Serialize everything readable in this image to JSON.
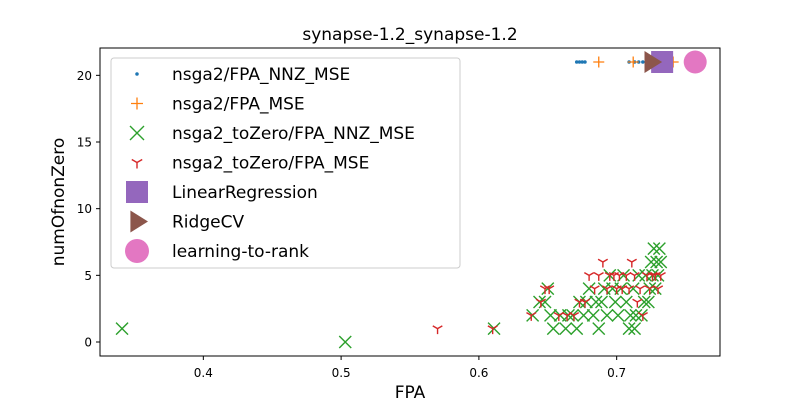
{
  "chart_data": {
    "type": "scatter",
    "title": "synapse-1.2_synapse-1.2",
    "xlabel": "FPA",
    "ylabel": "numOfnonZero",
    "xlim": [
      0.325,
      0.775
    ],
    "ylim": [
      -1.05,
      22.05
    ],
    "xticks": [
      0.4,
      0.5,
      0.6,
      0.7
    ],
    "xtick_labels": [
      "0.4",
      "0.5",
      "0.6",
      "0.7"
    ],
    "yticks": [
      0,
      5,
      10,
      15,
      20
    ],
    "ytick_labels": [
      "0",
      "5",
      "10",
      "15",
      "20"
    ],
    "grid": false,
    "legend_position": "upper-left",
    "series": [
      {
        "name": "nsga2/FPA_NNZ_MSE",
        "marker": "dot",
        "color": "#1f77b4",
        "points": [
          [
            0.671,
            21
          ],
          [
            0.673,
            21
          ],
          [
            0.675,
            21
          ],
          [
            0.677,
            21
          ],
          [
            0.709,
            21
          ],
          [
            0.713,
            21
          ],
          [
            0.716,
            21
          ],
          [
            0.719,
            21
          ],
          [
            0.722,
            21
          ]
        ]
      },
      {
        "name": "nsga2/FPA_MSE",
        "marker": "plus",
        "color": "#ff7f0e",
        "points": [
          [
            0.687,
            21
          ],
          [
            0.712,
            21
          ],
          [
            0.729,
            21
          ],
          [
            0.736,
            21
          ],
          [
            0.741,
            21
          ]
        ]
      },
      {
        "name": "nsga2_toZero/FPA_NNZ_MSE",
        "marker": "x",
        "color": "#2ca02c",
        "points": [
          [
            0.341,
            1
          ],
          [
            0.503,
            0
          ],
          [
            0.611,
            1
          ],
          [
            0.639,
            2
          ],
          [
            0.644,
            3
          ],
          [
            0.648,
            3
          ],
          [
            0.65,
            4
          ],
          [
            0.652,
            2
          ],
          [
            0.654,
            1
          ],
          [
            0.659,
            2
          ],
          [
            0.663,
            1
          ],
          [
            0.665,
            2
          ],
          [
            0.668,
            2
          ],
          [
            0.671,
            1
          ],
          [
            0.673,
            3
          ],
          [
            0.676,
            2
          ],
          [
            0.678,
            3
          ],
          [
            0.68,
            4
          ],
          [
            0.683,
            2
          ],
          [
            0.685,
            3
          ],
          [
            0.687,
            1
          ],
          [
            0.689,
            3
          ],
          [
            0.691,
            4
          ],
          [
            0.693,
            2
          ],
          [
            0.695,
            5
          ],
          [
            0.697,
            4
          ],
          [
            0.699,
            3
          ],
          [
            0.701,
            2
          ],
          [
            0.703,
            4
          ],
          [
            0.705,
            5
          ],
          [
            0.707,
            3
          ],
          [
            0.709,
            1
          ],
          [
            0.71,
            2
          ],
          [
            0.712,
            4
          ],
          [
            0.713,
            1
          ],
          [
            0.714,
            2
          ],
          [
            0.716,
            5
          ],
          [
            0.718,
            2
          ],
          [
            0.72,
            3
          ],
          [
            0.721,
            5
          ],
          [
            0.723,
            3
          ],
          [
            0.724,
            4
          ],
          [
            0.725,
            6
          ],
          [
            0.726,
            5
          ],
          [
            0.727,
            7
          ],
          [
            0.728,
            4
          ],
          [
            0.729,
            6
          ],
          [
            0.73,
            5
          ],
          [
            0.731,
            7
          ],
          [
            0.732,
            6
          ]
        ]
      },
      {
        "name": "nsga2_toZero/FPA_MSE",
        "marker": "tri_down",
        "color": "#d62728",
        "points": [
          [
            0.57,
            1
          ],
          [
            0.61,
            1
          ],
          [
            0.638,
            2
          ],
          [
            0.645,
            3
          ],
          [
            0.648,
            4
          ],
          [
            0.651,
            4
          ],
          [
            0.658,
            2
          ],
          [
            0.664,
            2
          ],
          [
            0.669,
            2
          ],
          [
            0.673,
            3
          ],
          [
            0.677,
            3
          ],
          [
            0.68,
            5
          ],
          [
            0.684,
            4
          ],
          [
            0.687,
            5
          ],
          [
            0.69,
            6
          ],
          [
            0.693,
            4
          ],
          [
            0.695,
            5
          ],
          [
            0.698,
            5
          ],
          [
            0.7,
            4
          ],
          [
            0.702,
            5
          ],
          [
            0.704,
            4
          ],
          [
            0.707,
            5
          ],
          [
            0.709,
            4
          ],
          [
            0.711,
            6
          ],
          [
            0.713,
            5
          ],
          [
            0.715,
            3
          ],
          [
            0.717,
            4
          ],
          [
            0.719,
            2
          ],
          [
            0.722,
            5
          ],
          [
            0.724,
            4
          ],
          [
            0.726,
            5
          ],
          [
            0.728,
            5
          ],
          [
            0.73,
            4
          ],
          [
            0.732,
            5
          ]
        ]
      },
      {
        "name": "LinearRegression",
        "marker": "square",
        "color": "#9467bd",
        "points": [
          [
            0.733,
            21
          ]
        ]
      },
      {
        "name": "RidgeCV",
        "marker": "triangle_right",
        "color": "#8c564b",
        "points": [
          [
            0.725,
            21
          ]
        ]
      },
      {
        "name": "learning-to-rank",
        "marker": "circle",
        "color": "#e377c2",
        "points": [
          [
            0.757,
            21
          ]
        ]
      }
    ]
  }
}
